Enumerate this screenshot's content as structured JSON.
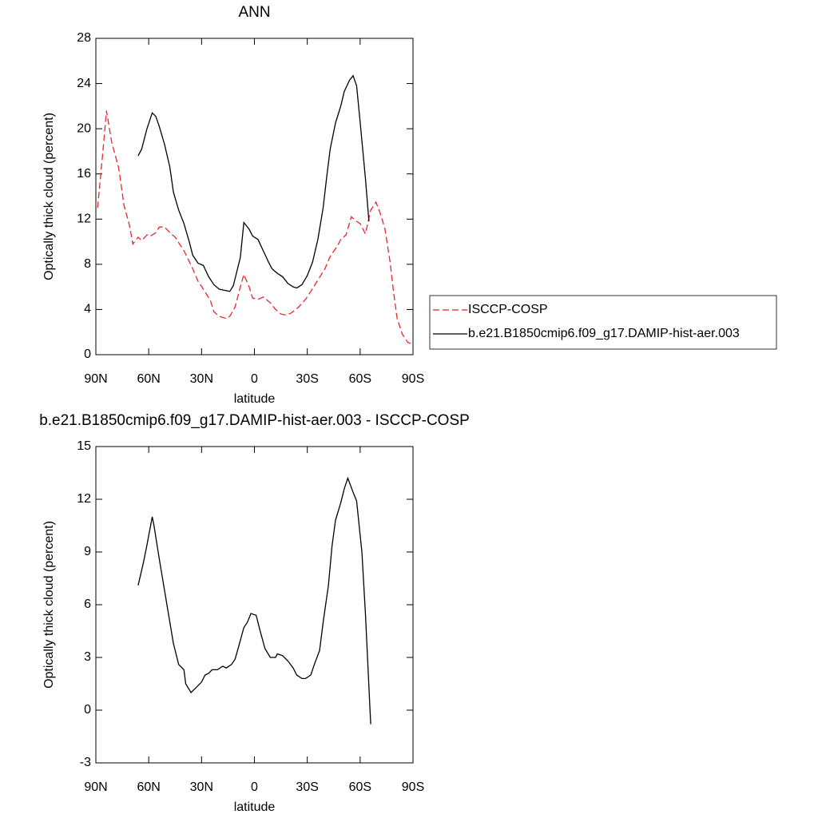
{
  "chart_data": [
    {
      "type": "line",
      "title": "ANN",
      "xlabel": "latitude",
      "ylabel": "Optically thick cloud (percent)",
      "xlim": [
        90,
        -90
      ],
      "ylim": [
        0,
        28
      ],
      "xticks": [
        {
          "value": 90,
          "label": "90N"
        },
        {
          "value": 60,
          "label": "60N"
        },
        {
          "value": 30,
          "label": "30N"
        },
        0,
        {
          "value": -30,
          "label": "30S"
        },
        {
          "value": -60,
          "label": "60S"
        },
        {
          "value": -90,
          "label": "90S"
        }
      ],
      "yticks": [
        0,
        4,
        8,
        12,
        16,
        20,
        24,
        28
      ],
      "legend": "right",
      "series": [
        {
          "name": "ISCCP-COSP",
          "color": "#e8262c",
          "dashed": true,
          "x": [
            89,
            86,
            84,
            81,
            77,
            74,
            71,
            69,
            66,
            64,
            61,
            59,
            56,
            54,
            51,
            48,
            45,
            40,
            35,
            32,
            29,
            25,
            23,
            20,
            16,
            14,
            11,
            8,
            6,
            3,
            1,
            -2,
            -5,
            -9,
            -12,
            -15,
            -18,
            -21,
            -25,
            -29,
            -32,
            -36,
            -40,
            -43,
            -47,
            -49,
            -52,
            -55,
            -58,
            -60,
            -63,
            -66,
            -69,
            -71,
            -74,
            -77,
            -79,
            -81,
            -84,
            -87,
            -90
          ],
          "values": [
            13,
            18,
            21.6,
            18.8,
            16.5,
            13.2,
            11.5,
            9.8,
            10.4,
            10.1,
            10.6,
            10.5,
            10.8,
            11.3,
            11.3,
            10.8,
            10.4,
            9.2,
            7.6,
            6.5,
            5.8,
            4.8,
            3.8,
            3.4,
            3.2,
            3.4,
            4.2,
            6,
            7.1,
            6,
            5,
            4.9,
            5.1,
            4.6,
            4,
            3.6,
            3.5,
            3.7,
            4.2,
            4.9,
            5.6,
            6.6,
            7.6,
            8.7,
            9.6,
            10.2,
            10.6,
            12.2,
            11.8,
            11.6,
            10.7,
            12.8,
            13.5,
            12.7,
            11.2,
            8.2,
            5.5,
            3.2,
            1.8,
            1.1,
            0.9
          ]
        },
        {
          "name": "b.e21.B1850cmip6.f09_g17.DAMIP-hist-aer.003",
          "color": "#000000",
          "dashed": false,
          "x": [
            66,
            64,
            61,
            58,
            56,
            54,
            51,
            48,
            46,
            43,
            40,
            37,
            35,
            32,
            29,
            26,
            23,
            20,
            17,
            14,
            12,
            8,
            6,
            3,
            1,
            -2,
            -5,
            -8,
            -10,
            -13,
            -16,
            -19,
            -22,
            -24,
            -27,
            -30,
            -33,
            -36,
            -39,
            -41,
            -43,
            -46,
            -49,
            -51,
            -54,
            -56,
            -58,
            -60,
            -63,
            -65
          ],
          "values": [
            17.6,
            18.2,
            20,
            21.4,
            21.1,
            20.2,
            18.6,
            16.6,
            14.4,
            12.8,
            11.6,
            10,
            8.8,
            8.1,
            7.9,
            6.9,
            6.2,
            5.8,
            5.7,
            5.6,
            6.1,
            8.6,
            11.7,
            11.1,
            10.5,
            10.2,
            9.2,
            8.2,
            7.6,
            7.2,
            6.9,
            6.3,
            6,
            5.9,
            6.2,
            7,
            8.2,
            10.2,
            13,
            15.7,
            18.2,
            20.5,
            22,
            23.3,
            24.3,
            24.7,
            23.8,
            20.6,
            15.6,
            11.8
          ]
        }
      ]
    },
    {
      "type": "line",
      "title": "b.e21.B1850cmip6.f09_g17.DAMIP-hist-aer.003 - ISCCP-COSP",
      "xlabel": "latitude",
      "ylabel": "Optically thick cloud (percent)",
      "xlim": [
        90,
        -90
      ],
      "ylim": [
        -3,
        15
      ],
      "xticks": [
        {
          "value": 90,
          "label": "90N"
        },
        {
          "value": 60,
          "label": "60N"
        },
        {
          "value": 30,
          "label": "30N"
        },
        0,
        {
          "value": -30,
          "label": "30S"
        },
        {
          "value": -60,
          "label": "60S"
        },
        {
          "value": -90,
          "label": "90S"
        }
      ],
      "yticks": [
        -3,
        0,
        3,
        6,
        9,
        12,
        15
      ],
      "series": [
        {
          "color": "#000000",
          "dashed": false,
          "x": [
            66,
            63,
            61,
            58,
            57,
            54,
            51,
            48,
            46,
            43,
            40,
            39,
            36,
            33,
            30,
            28,
            26,
            24,
            21,
            18,
            16,
            13,
            11,
            9,
            6,
            4,
            2,
            -1,
            -3,
            -6,
            -9,
            -12,
            -13,
            -16,
            -19,
            -22,
            -24,
            -27,
            -29,
            -32,
            -34,
            -37,
            -39,
            -42,
            -44,
            -46,
            -49,
            -51,
            -53,
            -56,
            -58,
            -61,
            -63,
            -66
          ],
          "values": [
            7.1,
            8.4,
            9.4,
            11,
            10.5,
            8.6,
            6.8,
            5,
            3.8,
            2.6,
            2.3,
            1.5,
            1,
            1.3,
            1.6,
            2,
            2.1,
            2.3,
            2.3,
            2.5,
            2.4,
            2.6,
            2.9,
            3.6,
            4.7,
            5,
            5.5,
            5.4,
            4.6,
            3.5,
            3,
            3,
            3.2,
            3.1,
            2.8,
            2.4,
            2,
            1.8,
            1.8,
            2,
            2.6,
            3.4,
            5,
            7.1,
            9.3,
            10.8,
            11.8,
            12.6,
            13.2,
            12.4,
            11.9,
            9,
            5.5,
            -0.8
          ]
        }
      ]
    }
  ]
}
